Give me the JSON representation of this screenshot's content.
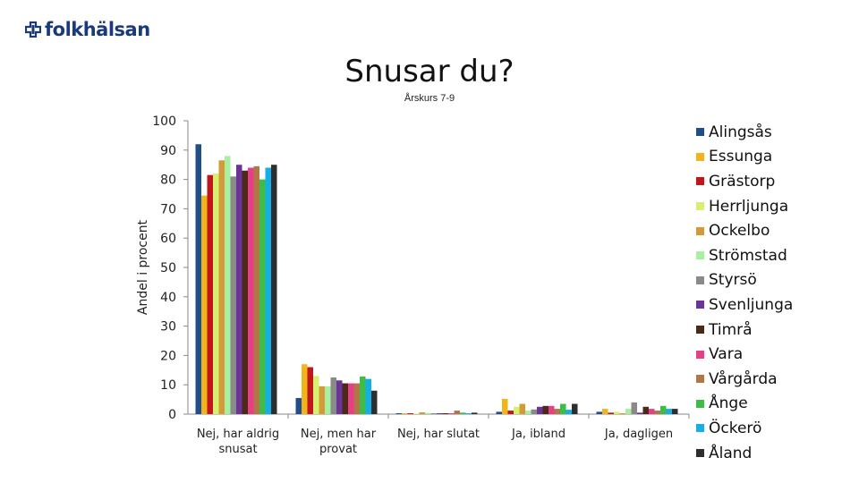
{
  "brand": {
    "name": "folkhälsan",
    "color": "#1a3a78"
  },
  "chart_data": {
    "type": "bar",
    "title": "Snusar du?",
    "subtitle": "Årskurs 7-9",
    "ylabel": "Andel i procent",
    "xlabel": "",
    "ylim": [
      0,
      100
    ],
    "yticks": [
      0,
      10,
      20,
      30,
      40,
      50,
      60,
      70,
      80,
      90,
      100
    ],
    "grid": false,
    "legend_position": "right",
    "categories": [
      "Nej, har aldrig snusat",
      "Nej, men har provat",
      "Nej, har slutat",
      "Ja, ibland",
      "Ja, dagligen"
    ],
    "series": [
      {
        "name": "Alingsås",
        "color": "#1f4e89",
        "values": [
          92,
          5.5,
          0.3,
          0.8,
          0.8
        ]
      },
      {
        "name": "Essunga",
        "color": "#f2b31b",
        "values": [
          74.5,
          17,
          0.3,
          5.2,
          1.8
        ]
      },
      {
        "name": "Grästorp",
        "color": "#c0171b",
        "values": [
          81.5,
          16,
          0.3,
          1.2,
          0.5
        ]
      },
      {
        "name": "Herrljunga",
        "color": "#d8f070",
        "values": [
          82,
          13,
          0.2,
          2.5,
          0.8
        ]
      },
      {
        "name": "Ockelbo",
        "color": "#d49a3a",
        "values": [
          86.5,
          9.5,
          0.6,
          3.5,
          0.3
        ]
      },
      {
        "name": "Strömstad",
        "color": "#a6f0a0",
        "values": [
          88,
          9.5,
          0.4,
          1.2,
          1.8
        ]
      },
      {
        "name": "Styrsö",
        "color": "#8a8a8a",
        "values": [
          81,
          12.5,
          0.3,
          1.6,
          4
        ]
      },
      {
        "name": "Svenljunga",
        "color": "#6b3598",
        "values": [
          85,
          11.5,
          0.3,
          2.5,
          0.5
        ]
      },
      {
        "name": "Timrå",
        "color": "#4a2a16",
        "values": [
          83,
          10.5,
          0.3,
          2.8,
          2.5
        ]
      },
      {
        "name": "Vara",
        "color": "#e83e88",
        "values": [
          84,
          10.5,
          0.3,
          2.8,
          1.8
        ]
      },
      {
        "name": "Vårgårda",
        "color": "#b07848",
        "values": [
          84.5,
          10.5,
          1.2,
          1.8,
          1.2
        ]
      },
      {
        "name": "Ånge",
        "color": "#3dbd48",
        "values": [
          80,
          12.8,
          0.5,
          3.5,
          2.8
        ]
      },
      {
        "name": "Öckerö",
        "color": "#16aee6",
        "values": [
          84,
          12,
          0.3,
          1.5,
          1.8
        ]
      },
      {
        "name": "Åland",
        "color": "#2e2e2e",
        "values": [
          85,
          8,
          0.5,
          3.5,
          1.8
        ]
      }
    ]
  }
}
